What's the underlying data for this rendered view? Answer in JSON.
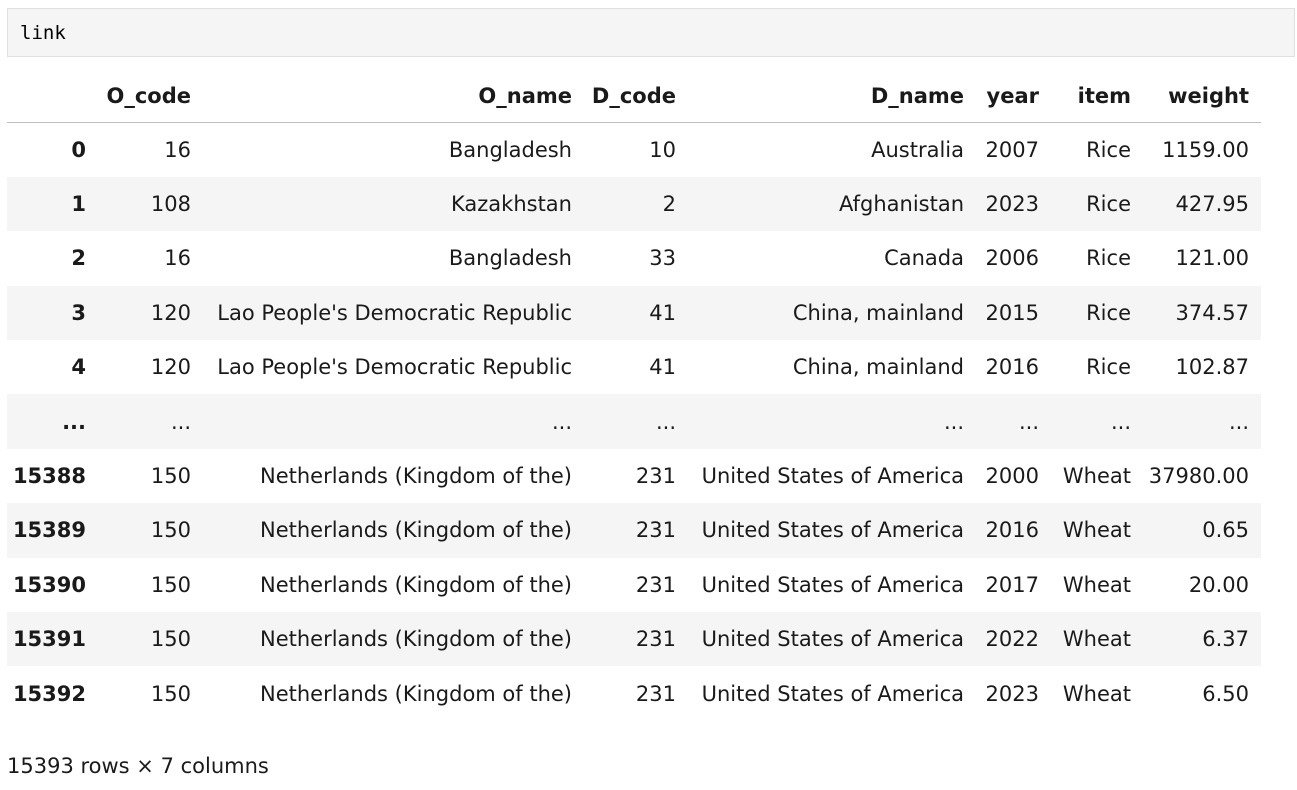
{
  "code_cell": {
    "text": "link"
  },
  "table": {
    "columns": [
      "",
      "O_code",
      "O_name",
      "D_code",
      "D_name",
      "year",
      "item",
      "weight"
    ],
    "rows": [
      [
        "0",
        "16",
        "Bangladesh",
        "10",
        "Australia",
        "2007",
        "Rice",
        "1159.00"
      ],
      [
        "1",
        "108",
        "Kazakhstan",
        "2",
        "Afghanistan",
        "2023",
        "Rice",
        "427.95"
      ],
      [
        "2",
        "16",
        "Bangladesh",
        "33",
        "Canada",
        "2006",
        "Rice",
        "121.00"
      ],
      [
        "3",
        "120",
        "Lao People's Democratic Republic",
        "41",
        "China, mainland",
        "2015",
        "Rice",
        "374.57"
      ],
      [
        "4",
        "120",
        "Lao People's Democratic Republic",
        "41",
        "China, mainland",
        "2016",
        "Rice",
        "102.87"
      ],
      [
        "...",
        "...",
        "...",
        "...",
        "...",
        "...",
        "...",
        "..."
      ],
      [
        "15388",
        "150",
        "Netherlands (Kingdom of the)",
        "231",
        "United States of America",
        "2000",
        "Wheat",
        "37980.00"
      ],
      [
        "15389",
        "150",
        "Netherlands (Kingdom of the)",
        "231",
        "United States of America",
        "2016",
        "Wheat",
        "0.65"
      ],
      [
        "15390",
        "150",
        "Netherlands (Kingdom of the)",
        "231",
        "United States of America",
        "2017",
        "Wheat",
        "20.00"
      ],
      [
        "15391",
        "150",
        "Netherlands (Kingdom of the)",
        "231",
        "United States of America",
        "2022",
        "Wheat",
        "6.37"
      ],
      [
        "15392",
        "150",
        "Netherlands (Kingdom of the)",
        "231",
        "United States of America",
        "2023",
        "Wheat",
        "6.50"
      ]
    ]
  },
  "summary": "15393 rows × 7 columns",
  "colors": {
    "stripe": "#f5f5f5",
    "code_background": "#f5f5f5",
    "header_border": "#bdbdbd"
  }
}
